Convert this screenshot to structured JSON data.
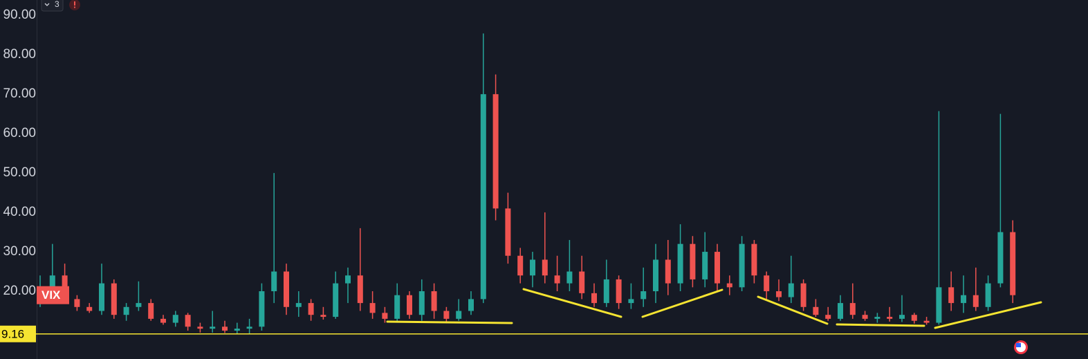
{
  "ui": {
    "indicator_count": 3
  },
  "chart_data": {
    "type": "candlestick",
    "symbol": "VIX",
    "up_color": "#26a69a",
    "down_color": "#ef5350",
    "open": [
      18,
      21,
      24,
      18,
      16,
      15,
      22,
      14,
      16,
      17,
      13,
      12,
      14,
      11,
      10.5,
      11,
      10,
      10.5,
      11,
      20,
      25,
      16,
      17,
      14,
      13.5,
      22,
      24,
      17,
      14.5,
      13,
      19,
      14,
      20,
      15,
      13,
      15,
      18,
      70,
      41,
      29,
      24,
      28,
      24,
      22,
      25,
      19.5,
      17,
      23,
      17,
      18,
      20,
      28,
      22,
      32,
      23,
      30,
      22,
      21,
      32,
      24,
      20,
      18.5,
      22,
      16,
      14,
      13,
      17,
      14,
      13,
      13.5,
      13,
      14,
      12.5,
      12,
      21,
      17,
      19,
      16,
      22,
      35
    ],
    "high": [
      24,
      32,
      27,
      19,
      17,
      27,
      23,
      17,
      22.5,
      18,
      14,
      15,
      14.5,
      12,
      15,
      12.5,
      12,
      13,
      22,
      50,
      27,
      20,
      18,
      16,
      25,
      26,
      36,
      20,
      16,
      22,
      20,
      23,
      22,
      16,
      18,
      20,
      85.4,
      75,
      45,
      31,
      30,
      40,
      29,
      33,
      29,
      22,
      28,
      24,
      22,
      26,
      32,
      33,
      37,
      34,
      35,
      32,
      24,
      34,
      33,
      25,
      23,
      29,
      23,
      18,
      16,
      19,
      22,
      15,
      14.5,
      16,
      19,
      14.5,
      13.5,
      65.7,
      25,
      24,
      26,
      24,
      65,
      38
    ],
    "low": [
      16,
      19,
      17,
      15,
      14.5,
      14,
      13,
      12.5,
      15,
      12.5,
      11.5,
      11,
      10,
      9.5,
      9.5,
      9.4,
      9.2,
      9.3,
      10,
      17,
      14,
      13.5,
      12.5,
      12.8,
      13,
      17,
      15,
      13,
      12,
      12.2,
      13,
      12.5,
      13,
      12.2,
      12.5,
      14,
      17,
      38,
      27,
      22,
      21,
      22,
      20,
      20,
      18,
      16,
      16,
      15.5,
      15.5,
      16,
      17,
      19,
      20,
      21,
      21,
      20,
      19,
      20,
      22,
      18,
      17.5,
      17,
      15,
      13.5,
      12.5,
      12.5,
      13,
      12.5,
      12,
      12.3,
      12.2,
      11.8,
      11.5,
      11.5,
      15,
      14.5,
      15,
      15,
      21,
      17
    ],
    "close": [
      21,
      24,
      18,
      16,
      15,
      22,
      14,
      16,
      17,
      13,
      12,
      14,
      11,
      10.5,
      11,
      10,
      10.5,
      11,
      20,
      25,
      16,
      17,
      14,
      13.5,
      22,
      24,
      17,
      14.5,
      13,
      19,
      14,
      20,
      15,
      13,
      15,
      18,
      70,
      41,
      29,
      24,
      28,
      24,
      22,
      25,
      19.5,
      17,
      23,
      17,
      18,
      20,
      28,
      22,
      32,
      23,
      30,
      22,
      21,
      32,
      24,
      20,
      18.5,
      22,
      16,
      14,
      13,
      17,
      14,
      13,
      13.5,
      13,
      14,
      12.5,
      12,
      21,
      17,
      19,
      16,
      22,
      35,
      19
    ],
    "ylim": [
      2.8,
      93.9
    ],
    "yticks": [
      {
        "value": 20,
        "label": "20.00"
      },
      {
        "value": 30,
        "label": "30.00"
      },
      {
        "value": 40,
        "label": "40.00"
      },
      {
        "value": 50,
        "label": "50.00"
      },
      {
        "value": 60,
        "label": "60.00"
      },
      {
        "value": 70,
        "label": "70.00"
      },
      {
        "value": 80,
        "label": "80.00"
      },
      {
        "value": 90,
        "label": "90.00"
      }
    ],
    "price_line": 9.16,
    "price_line_color": "#f5e431",
    "grid": false
  }
}
